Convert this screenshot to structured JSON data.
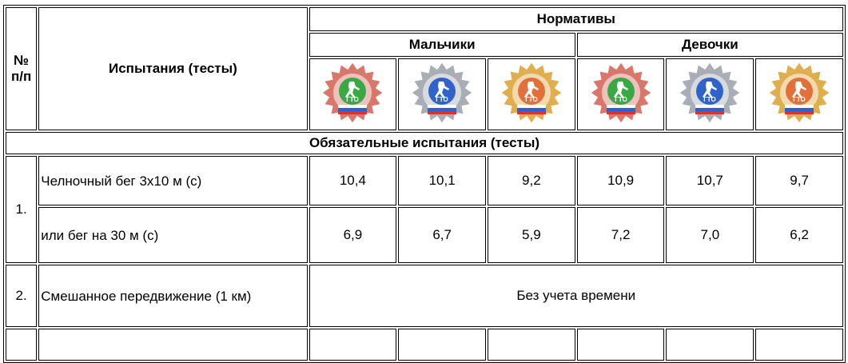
{
  "header": {
    "num_label": "№ п/п",
    "test_label": "Испытания (тесты)",
    "norms_label": "Нормативы",
    "boys_label": "Мальчики",
    "girls_label": "Девочки",
    "badge_text": "ГТО"
  },
  "badges": [
    {
      "name": "bronze",
      "color": "#d9776a",
      "center": "#3aa845"
    },
    {
      "name": "silver",
      "color": "#a9aeb6",
      "center": "#2f63c9"
    },
    {
      "name": "gold",
      "color": "#e0ad4f",
      "center": "#e2703a"
    },
    {
      "name": "bronze",
      "color": "#d9776a",
      "center": "#3aa845"
    },
    {
      "name": "silver",
      "color": "#a9aeb6",
      "center": "#2f63c9"
    },
    {
      "name": "gold",
      "color": "#e0ad4f",
      "center": "#e2703a"
    }
  ],
  "section": {
    "title": "Обязательные испытания (тесты)"
  },
  "rows": [
    {
      "index": "1.",
      "name": "Челночный бег 3х10 м (с)",
      "values": [
        "10,4",
        "10,1",
        "9,2",
        "10,9",
        "10,7",
        "9,7"
      ]
    },
    {
      "name": "или бег на 30 м (с)",
      "values": [
        "6,9",
        "6,7",
        "5,9",
        "7,2",
        "7,0",
        "6,2"
      ]
    },
    {
      "index": "2.",
      "name": "Смешанное передвижение (1 км)",
      "merged_value": "Без учета времени"
    }
  ]
}
